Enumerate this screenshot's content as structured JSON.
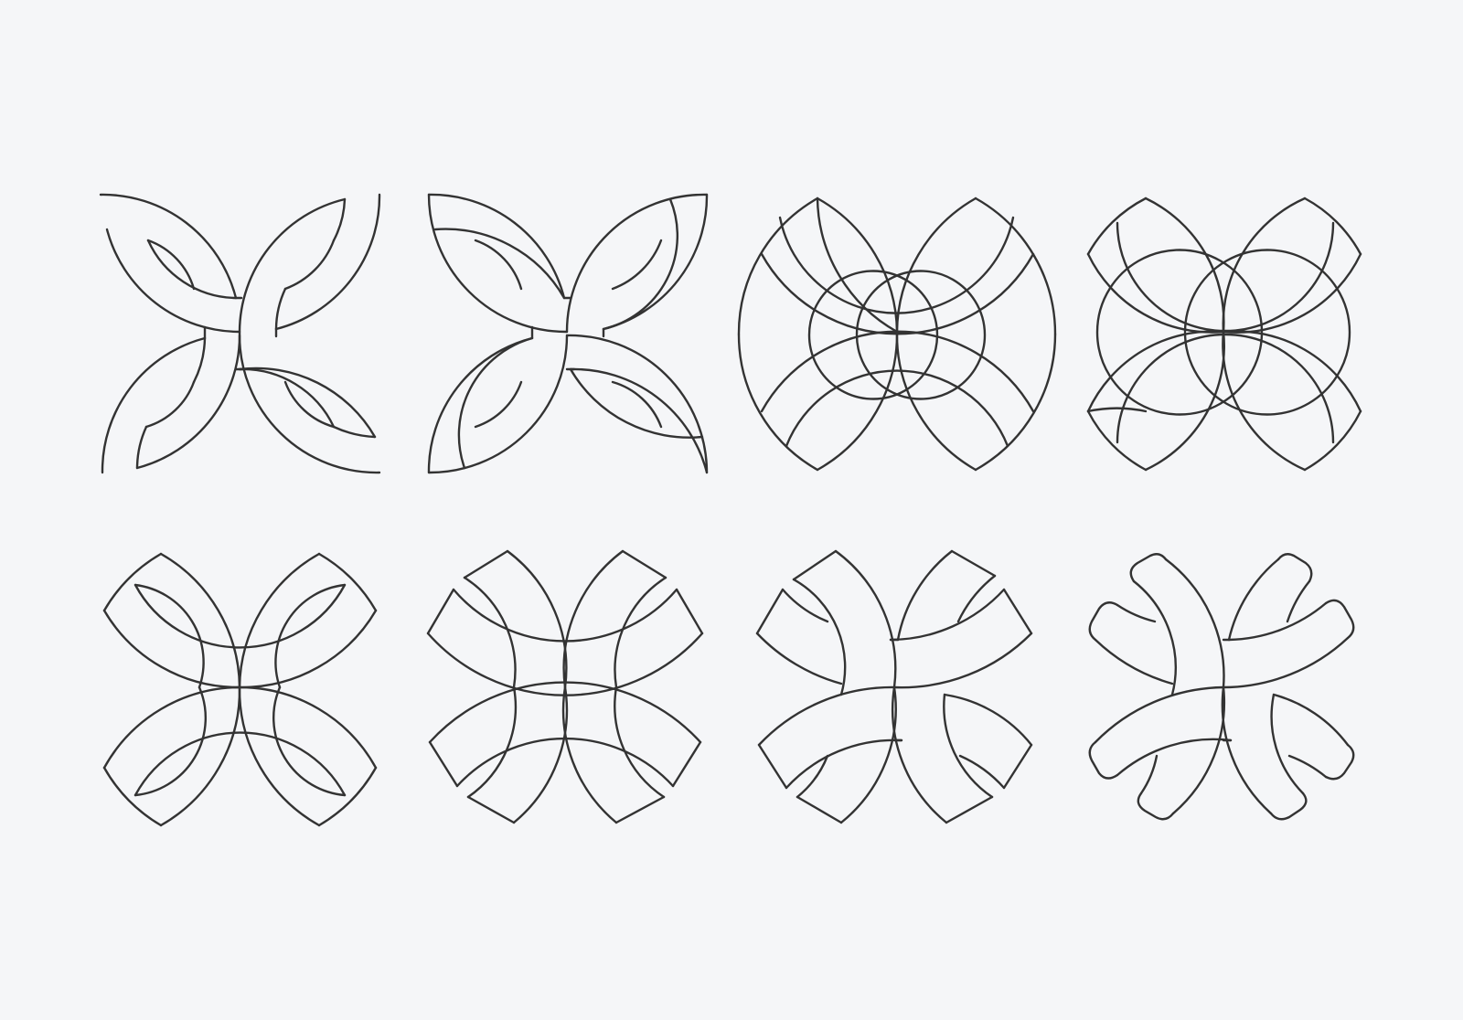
{
  "colors": {
    "background": "#f5f6f8",
    "stroke": "#333333"
  },
  "grid": {
    "rows": 2,
    "columns": 4
  },
  "glyphs": [
    {
      "id": "glyph-1",
      "variant": "interlaced-quarter-arcs"
    },
    {
      "id": "glyph-2",
      "variant": "interlaced-quarter-arcs-closed"
    },
    {
      "id": "glyph-3",
      "variant": "overlapping-lens-circles"
    },
    {
      "id": "glyph-4",
      "variant": "clipped-lens-petals"
    },
    {
      "id": "glyph-5",
      "variant": "pointed-petals"
    },
    {
      "id": "glyph-6",
      "variant": "woven-bands"
    },
    {
      "id": "glyph-7",
      "variant": "partial-woven-bands"
    },
    {
      "id": "glyph-8",
      "variant": "rounded-woven-bands"
    }
  ]
}
